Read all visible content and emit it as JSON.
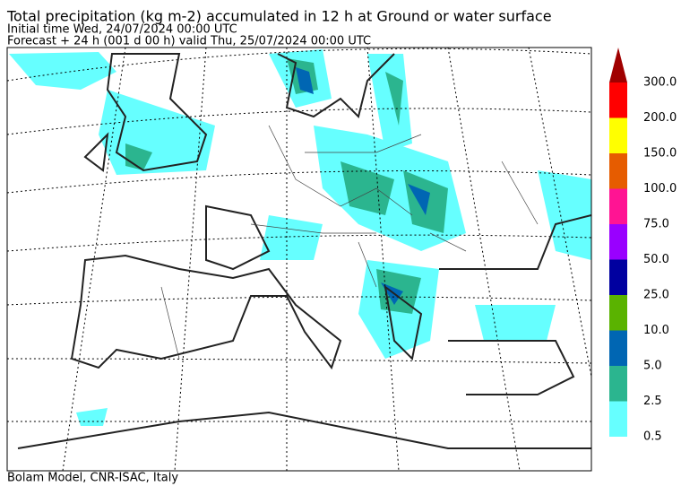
{
  "header": {
    "title": "Total precipitation (kg m-2) accumulated in  12 h at Ground or water surface",
    "initial_time": "Initial time  Wed, 24/07/2024  00:00 UTC",
    "forecast": "Forecast  +  24 h  (001 d 00 h)  valid Thu, 25/07/2024 00:00 UTC"
  },
  "legend": {
    "bands": [
      {
        "label": "0.5",
        "color": "#66ffff"
      },
      {
        "label": "2.5",
        "color": "#2bb58f"
      },
      {
        "label": "5.0",
        "color": "#0066b3"
      },
      {
        "label": "10.0",
        "color": "#5ab300"
      },
      {
        "label": "25.0",
        "color": "#0000a0"
      },
      {
        "label": "50.0",
        "color": "#9900ff"
      },
      {
        "label": "75.0",
        "color": "#ff1493"
      },
      {
        "label": "100.0",
        "color": "#e65c00"
      },
      {
        "label": "150.0",
        "color": "#ffff00"
      },
      {
        "label": "200.0",
        "color": "#ff0000"
      }
    ],
    "top_label": "300.0",
    "arrow_color": "#a00000"
  },
  "footer": "Bolam Model, CNR-ISAC, Italy"
}
